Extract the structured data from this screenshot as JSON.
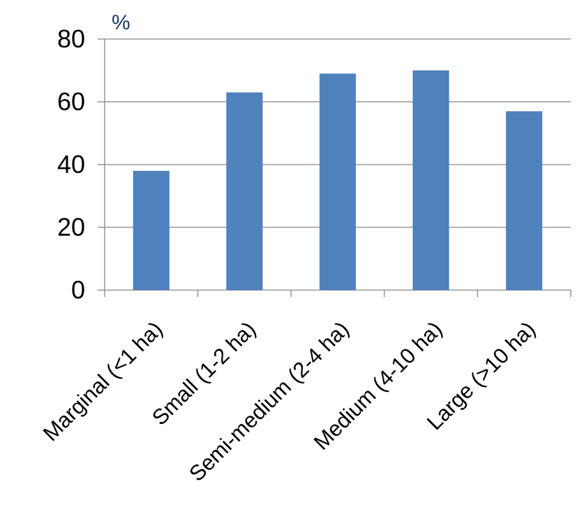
{
  "chart_data": {
    "type": "bar",
    "unit_label": "%",
    "categories": [
      "Marginal (<1 ha)",
      "Small (1-2 ha)",
      "Semi-medium (2-4 ha)",
      "Medium (4-10 ha)",
      "Large (>10 ha)"
    ],
    "values": [
      38,
      63,
      69,
      70,
      57
    ],
    "ylim": [
      0,
      80
    ],
    "yticks": [
      0,
      20,
      40,
      60,
      80
    ],
    "grid": true,
    "bar_color": "#4f81bd",
    "grid_color": "#868686"
  }
}
